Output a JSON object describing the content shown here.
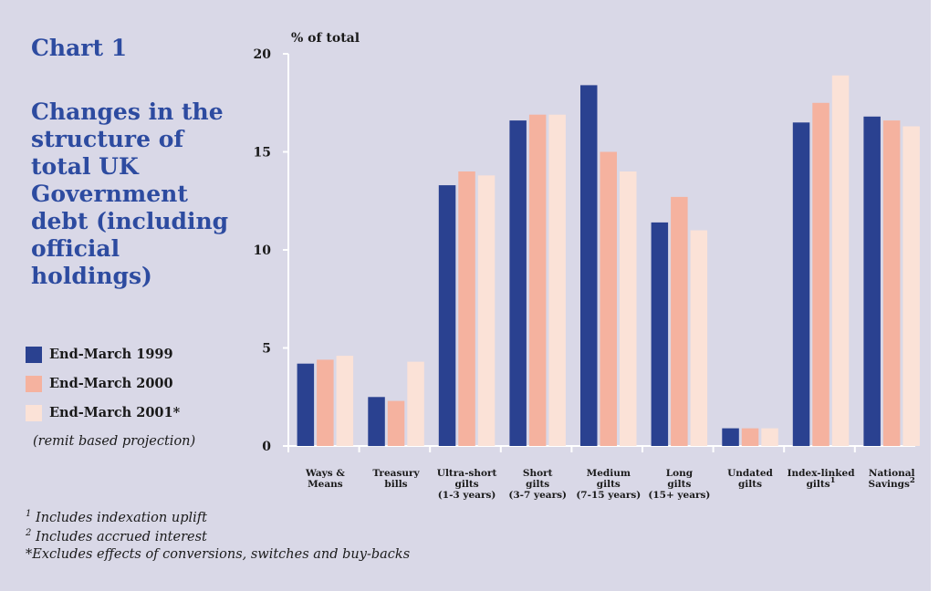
{
  "title": "Chart 1",
  "subtitle": "Changes in the structure of total UK Government debt (including official holdings)",
  "legend_note": "(remit based projection)",
  "footnotes": [
    {
      "mark": "1",
      "text": " Includes indexation uplift"
    },
    {
      "mark": "2",
      "text": " Includes accrued interest"
    },
    {
      "mark": "",
      "text": "*Excludes effects of conversions, switches and buy-backs"
    }
  ],
  "colors": {
    "background": "#d9d8e7",
    "title": "#2d4ba0",
    "axis": "#ffffff"
  },
  "chart_data": {
    "type": "bar",
    "title": "",
    "ylabel": "% of total",
    "xlabel": "",
    "ylim": [
      0,
      20
    ],
    "yticks": [
      0,
      5,
      10,
      15,
      20
    ],
    "grid": false,
    "legend_placement": "left",
    "categories": [
      {
        "lines": [
          "Ways &",
          "Means"
        ],
        "sup": ""
      },
      {
        "lines": [
          "Treasury",
          "bills"
        ],
        "sup": ""
      },
      {
        "lines": [
          "Ultra-short",
          "gilts",
          "(1-3 years)"
        ],
        "sup": ""
      },
      {
        "lines": [
          "Short",
          "gilts",
          "(3-7 years)"
        ],
        "sup": ""
      },
      {
        "lines": [
          "Medium",
          "gilts",
          "(7-15 years)"
        ],
        "sup": ""
      },
      {
        "lines": [
          "Long",
          "gilts",
          "(15+ years)"
        ],
        "sup": ""
      },
      {
        "lines": [
          "Undated",
          "gilts"
        ],
        "sup": ""
      },
      {
        "lines": [
          "Index-linked",
          "gilts"
        ],
        "sup": "1"
      },
      {
        "lines": [
          "National",
          "Savings"
        ],
        "sup": "2"
      }
    ],
    "series": [
      {
        "name": "End-March 1999",
        "color": "#2a4190",
        "values": [
          4.2,
          2.5,
          13.3,
          16.6,
          18.4,
          11.4,
          0.9,
          16.5,
          16.8
        ]
      },
      {
        "name": "End-March 2000",
        "color": "#f5b29f",
        "values": [
          4.4,
          2.3,
          14.0,
          16.9,
          15.0,
          12.7,
          0.9,
          17.5,
          16.6
        ]
      },
      {
        "name": "End-March 2001*",
        "color": "#fbe2d7",
        "values": [
          4.6,
          4.3,
          13.8,
          16.9,
          14.0,
          11.0,
          0.9,
          18.9,
          16.3
        ]
      }
    ]
  }
}
